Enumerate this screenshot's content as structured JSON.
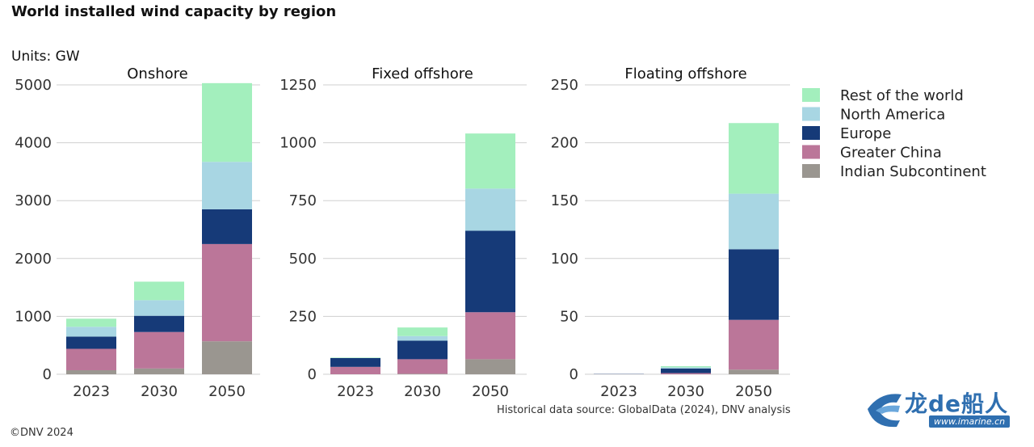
{
  "title": "World installed wind capacity by region",
  "units": "Units: GW",
  "source": "Historical data source: GlobalData (2024), DNV analysis",
  "copyright": "©DNV 2024",
  "watermark": {
    "text": "龙de船人",
    "sub": "www.imarine.cn"
  },
  "colors": {
    "Rest of the world": "#a3efbd",
    "North America": "#a8d6e3",
    "Europe": "#163a78",
    "Greater China": "#bb7699",
    "Indian Subcontinent": "#9a9690",
    "grid": "#cfcfcf"
  },
  "chart_data": [
    {
      "type": "bar",
      "stacked": true,
      "title": "Onshore",
      "categories": [
        "2023",
        "2030",
        "2050"
      ],
      "ylim": [
        0,
        5000
      ],
      "yticks": [
        0,
        1000,
        2000,
        3000,
        4000,
        5000
      ],
      "series": [
        {
          "name": "Indian Subcontinent",
          "values": [
            70,
            100,
            570
          ]
        },
        {
          "name": "Greater China",
          "values": [
            370,
            630,
            1680
          ]
        },
        {
          "name": "Europe",
          "values": [
            210,
            280,
            600
          ]
        },
        {
          "name": "North America",
          "values": [
            170,
            270,
            820
          ]
        },
        {
          "name": "Rest of the world",
          "values": [
            140,
            320,
            1360
          ]
        }
      ]
    },
    {
      "type": "bar",
      "stacked": true,
      "title": "Fixed offshore",
      "categories": [
        "2023",
        "2030",
        "2050"
      ],
      "ylim": [
        0,
        1250
      ],
      "yticks": [
        0,
        250,
        500,
        750,
        1000,
        1250
      ],
      "series": [
        {
          "name": "Indian Subcontinent",
          "values": [
            0,
            2,
            65
          ]
        },
        {
          "name": "Greater China",
          "values": [
            32,
            63,
            203
          ]
        },
        {
          "name": "Europe",
          "values": [
            38,
            80,
            352
          ]
        },
        {
          "name": "North America",
          "values": [
            0,
            20,
            182
          ]
        },
        {
          "name": "Rest of the world",
          "values": [
            2,
            37,
            238
          ]
        }
      ]
    },
    {
      "type": "bar",
      "stacked": true,
      "title": "Floating offshore",
      "categories": [
        "2023",
        "2030",
        "2050"
      ],
      "ylim": [
        0,
        250
      ],
      "yticks": [
        0,
        50,
        100,
        150,
        200,
        250
      ],
      "series": [
        {
          "name": "Indian Subcontinent",
          "values": [
            0,
            0,
            4
          ]
        },
        {
          "name": "Greater China",
          "values": [
            0,
            1,
            43
          ]
        },
        {
          "name": "Europe",
          "values": [
            0.2,
            4,
            61
          ]
        },
        {
          "name": "North America",
          "values": [
            0,
            1,
            48
          ]
        },
        {
          "name": "Rest of the world",
          "values": [
            0,
            1,
            61
          ]
        }
      ]
    }
  ],
  "legend": [
    "Rest of the world",
    "North America",
    "Europe",
    "Greater China",
    "Indian Subcontinent"
  ]
}
